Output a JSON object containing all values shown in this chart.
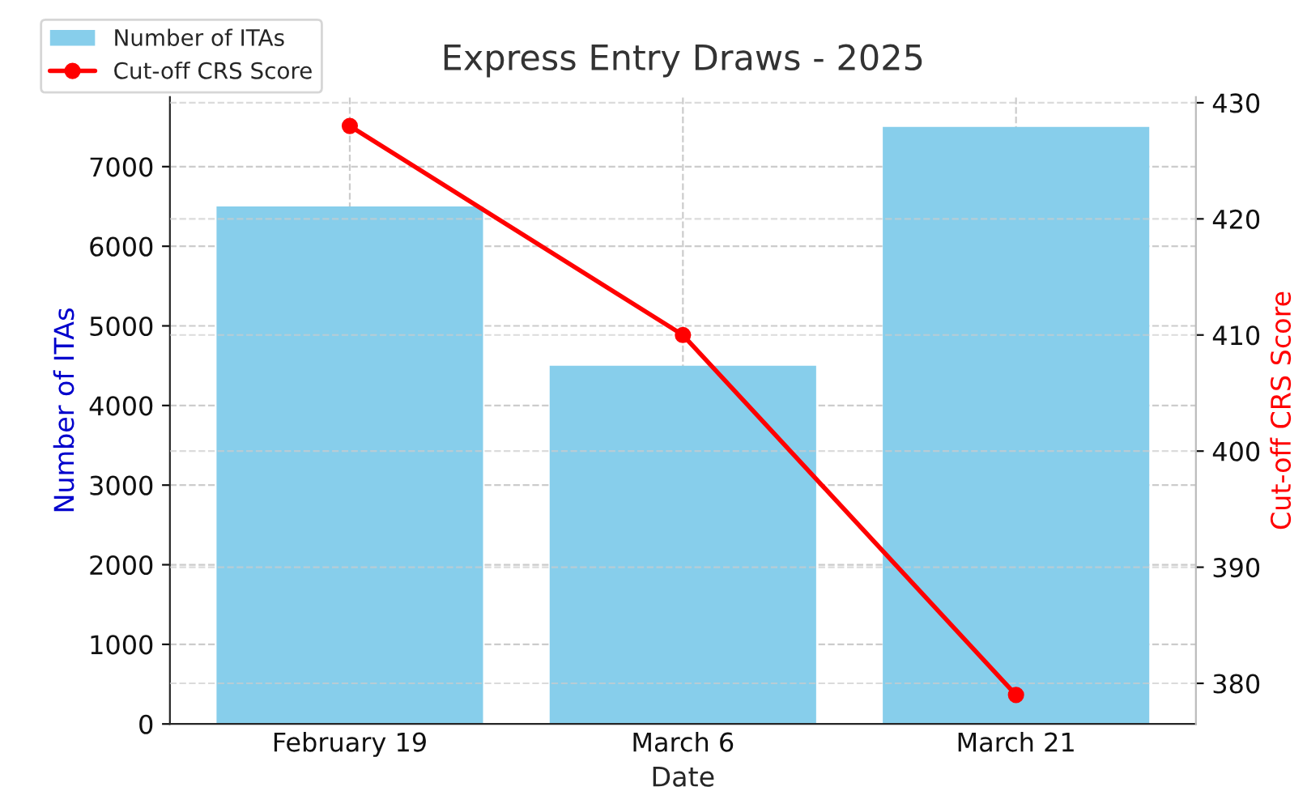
{
  "chart_data": {
    "type": "bar",
    "title": "Express Entry Draws - 2025",
    "xlabel": "Date",
    "ylabel": "Number of ITAs",
    "y2label": "Cut-off CRS Score",
    "categories": [
      "February 19",
      "March 6",
      "March 21"
    ],
    "series": [
      {
        "name": "Number of ITAs",
        "color": "#87ceeb",
        "values": [
          6500,
          4500,
          7500
        ]
      },
      {
        "name": "Cut-off CRS Score",
        "type": "line",
        "axis": "y2",
        "color": "#ff0000",
        "values": [
          428,
          410,
          379
        ]
      }
    ],
    "ylim": [
      0,
      7875
    ],
    "yticks": [
      0,
      1000,
      2000,
      3000,
      4000,
      5000,
      6000,
      7000
    ],
    "y2lim": [
      376.5,
      430.5
    ],
    "y2ticks": [
      380,
      390,
      400,
      410,
      420,
      430
    ],
    "grid": true,
    "legend": "top left",
    "marker": "circle",
    "line_style": "solid"
  }
}
